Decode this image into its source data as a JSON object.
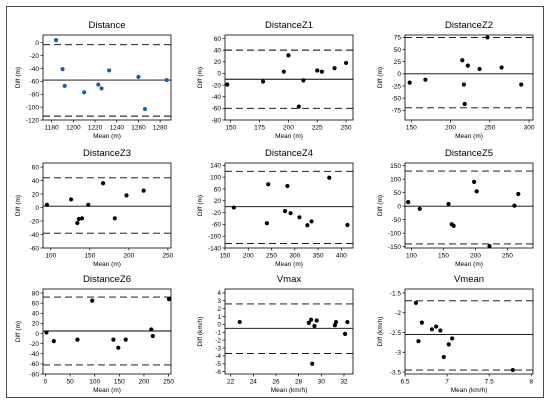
{
  "chart_data": [
    {
      "type": "scatter",
      "title": "Distance",
      "xlabel": "Mean (m)",
      "ylabel": "Diff (m)",
      "xlim": [
        1172,
        1290
      ],
      "ylim": [
        -120,
        12
      ],
      "xticks": [
        1180,
        1200,
        1220,
        1240,
        1260,
        1280
      ],
      "yticks": [
        0,
        -20,
        -40,
        -60,
        -80,
        -100,
        -120
      ],
      "marker_color": "#1f5f9a",
      "mean_line": -58,
      "limits": [
        -3,
        -114
      ],
      "points": [
        {
          "x": 1184,
          "y": 4
        },
        {
          "x": 1190,
          "y": -41
        },
        {
          "x": 1192,
          "y": -67
        },
        {
          "x": 1210,
          "y": -77
        },
        {
          "x": 1223,
          "y": -65
        },
        {
          "x": 1226,
          "y": -71
        },
        {
          "x": 1233,
          "y": -43
        },
        {
          "x": 1260,
          "y": -53
        },
        {
          "x": 1266,
          "y": -103
        },
        {
          "x": 1286,
          "y": -58
        }
      ]
    },
    {
      "type": "scatter",
      "title": "DistanceZ1",
      "xlabel": "Mean (m)",
      "ylabel": "Diff (m)",
      "xlim": [
        145,
        256
      ],
      "ylim": [
        -80,
        66
      ],
      "xticks": [
        150,
        175,
        200,
        225,
        250
      ],
      "yticks": [
        60,
        40,
        20,
        0,
        -20,
        -40,
        -60,
        -80
      ],
      "marker_color": "#000000",
      "mean_line": -10,
      "limits": [
        40,
        -60
      ],
      "points": [
        {
          "x": 147,
          "y": -19
        },
        {
          "x": 178,
          "y": -14
        },
        {
          "x": 196,
          "y": 3
        },
        {
          "x": 200,
          "y": 31
        },
        {
          "x": 209,
          "y": -57
        },
        {
          "x": 213,
          "y": -12
        },
        {
          "x": 225,
          "y": 5
        },
        {
          "x": 229,
          "y": 3
        },
        {
          "x": 240,
          "y": 9
        },
        {
          "x": 250,
          "y": 18
        }
      ]
    },
    {
      "type": "scatter",
      "title": "DistanceZ2",
      "xlabel": "Mean (m)",
      "ylabel": "Diff (m)",
      "xlim": [
        142,
        305
      ],
      "ylim": [
        -95,
        80
      ],
      "xticks": [
        150,
        200,
        250,
        300
      ],
      "yticks": [
        75,
        50,
        25,
        0,
        -25,
        -50,
        -75
      ],
      "marker_color": "#000000",
      "mean_line": 0,
      "limits": [
        75,
        -70
      ],
      "points": [
        {
          "x": 148,
          "y": -18
        },
        {
          "x": 168,
          "y": -12
        },
        {
          "x": 215,
          "y": 28
        },
        {
          "x": 217,
          "y": -22
        },
        {
          "x": 218,
          "y": -62
        },
        {
          "x": 222,
          "y": 17
        },
        {
          "x": 237,
          "y": 10
        },
        {
          "x": 247,
          "y": 75
        },
        {
          "x": 265,
          "y": 13
        },
        {
          "x": 290,
          "y": -22
        }
      ]
    },
    {
      "type": "scatter",
      "title": "DistanceZ3",
      "xlabel": "Mean (m)",
      "ylabel": "Diff (m)",
      "xlim": [
        90,
        254
      ],
      "ylim": [
        -60,
        66
      ],
      "xticks": [
        100,
        150,
        200,
        250
      ],
      "yticks": [
        60,
        40,
        20,
        0,
        -20,
        -40,
        -60
      ],
      "marker_color": "#000000",
      "mean_line": 2,
      "limits": [
        44,
        -38
      ],
      "points": [
        {
          "x": 95,
          "y": 4
        },
        {
          "x": 126,
          "y": 12
        },
        {
          "x": 134,
          "y": -23
        },
        {
          "x": 136,
          "y": -17
        },
        {
          "x": 140,
          "y": -16
        },
        {
          "x": 148,
          "y": 4
        },
        {
          "x": 167,
          "y": 36
        },
        {
          "x": 182,
          "y": -16
        },
        {
          "x": 197,
          "y": 18
        },
        {
          "x": 219,
          "y": 25
        }
      ]
    },
    {
      "type": "scatter",
      "title": "DistanceZ4",
      "xlabel": "Mean (m)",
      "ylabel": "Diff (m)",
      "xlim": [
        150,
        425
      ],
      "ylim": [
        -140,
        148
      ],
      "xticks": [
        150,
        200,
        250,
        300,
        350,
        400
      ],
      "yticks": [
        140,
        100,
        60,
        20,
        -20,
        -60,
        -100,
        -140
      ],
      "marker_color": "#000000",
      "mean_line": 0,
      "limits": [
        120,
        -125
      ],
      "points": [
        {
          "x": 169,
          "y": -3
        },
        {
          "x": 240,
          "y": -56
        },
        {
          "x": 243,
          "y": 76
        },
        {
          "x": 279,
          "y": -15
        },
        {
          "x": 284,
          "y": 70
        },
        {
          "x": 291,
          "y": -22
        },
        {
          "x": 310,
          "y": -36
        },
        {
          "x": 327,
          "y": -63
        },
        {
          "x": 336,
          "y": -50
        },
        {
          "x": 374,
          "y": 98
        },
        {
          "x": 413,
          "y": -62
        }
      ]
    },
    {
      "type": "scatter",
      "title": "DistanceZ5",
      "xlabel": "Mean (m)",
      "ylabel": "Diff (m)",
      "xlim": [
        90,
        290
      ],
      "ylim": [
        -155,
        160
      ],
      "xticks": [
        100,
        150,
        200,
        250
      ],
      "yticks": [
        150,
        100,
        50,
        0,
        -50,
        -100,
        -150
      ],
      "marker_color": "#000000",
      "mean_line": 0,
      "limits": [
        130,
        -140
      ],
      "points": [
        {
          "x": 95,
          "y": 15
        },
        {
          "x": 113,
          "y": -10
        },
        {
          "x": 158,
          "y": 8
        },
        {
          "x": 163,
          "y": -67
        },
        {
          "x": 166,
          "y": -73
        },
        {
          "x": 198,
          "y": 90
        },
        {
          "x": 202,
          "y": 55
        },
        {
          "x": 222,
          "y": -148
        },
        {
          "x": 261,
          "y": 2
        },
        {
          "x": 267,
          "y": 45
        }
      ]
    },
    {
      "type": "scatter",
      "title": "DistanceZ6",
      "xlabel": "Mean (m)",
      "ylabel": "Diff (m)",
      "xlim": [
        -5,
        255
      ],
      "ylim": [
        -80,
        88
      ],
      "xticks": [
        0,
        50,
        100,
        150,
        200,
        250
      ],
      "yticks": [
        80,
        60,
        40,
        20,
        0,
        -20,
        -40,
        -60,
        -80
      ],
      "marker_color": "#000000",
      "mean_line": 5,
      "limits": [
        72,
        -62
      ],
      "points": [
        {
          "x": 2,
          "y": 2
        },
        {
          "x": 17,
          "y": -15
        },
        {
          "x": 65,
          "y": -12
        },
        {
          "x": 95,
          "y": 65
        },
        {
          "x": 138,
          "y": -12
        },
        {
          "x": 148,
          "y": -28
        },
        {
          "x": 163,
          "y": -12
        },
        {
          "x": 215,
          "y": 8
        },
        {
          "x": 218,
          "y": -5
        },
        {
          "x": 251,
          "y": 68
        }
      ]
    },
    {
      "type": "scatter",
      "title": "Vmax",
      "xlabel": "Mean (km/h)",
      "ylabel": "Diff (km/h)",
      "xlim": [
        21.5,
        32.8
      ],
      "ylim": [
        -6.3,
        4.5
      ],
      "xticks": [
        22,
        24,
        26,
        28,
        30,
        32
      ],
      "yticks": [
        4,
        3,
        2,
        1,
        0,
        -1,
        -2,
        -3,
        -4,
        -5,
        -6
      ],
      "marker_color": "#000000",
      "mean_line": -0.5,
      "limits": [
        2.6,
        -3.7
      ],
      "points": [
        {
          "x": 22.8,
          "y": 0.3
        },
        {
          "x": 28.9,
          "y": 0.2
        },
        {
          "x": 29.1,
          "y": 0.6
        },
        {
          "x": 29.2,
          "y": -5.0
        },
        {
          "x": 29.4,
          "y": -0.2
        },
        {
          "x": 29.6,
          "y": 0.5
        },
        {
          "x": 31.2,
          "y": -0.1
        },
        {
          "x": 31.3,
          "y": 0.3
        },
        {
          "x": 32.1,
          "y": -1.2
        },
        {
          "x": 32.3,
          "y": 0.3
        }
      ]
    },
    {
      "type": "scatter",
      "title": "Vmean",
      "xlabel": "Mean (km/h)",
      "ylabel": "Diff (km/h)",
      "xlim": [
        6.5,
        8.02
      ],
      "ylim": [
        -3.55,
        -1.4
      ],
      "xticks": [
        6.5,
        7,
        7.5,
        8
      ],
      "yticks": [
        -1.5,
        -2,
        -2.5,
        -3,
        -3.5
      ],
      "marker_color": "#000000",
      "mean_line": -2.55,
      "limits": [
        -1.7,
        -3.45
      ],
      "points": [
        {
          "x": 6.63,
          "y": -1.75
        },
        {
          "x": 6.66,
          "y": -2.72
        },
        {
          "x": 6.7,
          "y": -2.25
        },
        {
          "x": 6.82,
          "y": -2.42
        },
        {
          "x": 6.87,
          "y": -2.35
        },
        {
          "x": 6.92,
          "y": -2.45
        },
        {
          "x": 6.96,
          "y": -3.12
        },
        {
          "x": 7.02,
          "y": -2.8
        },
        {
          "x": 7.06,
          "y": -2.65
        },
        {
          "x": 7.78,
          "y": -3.45
        }
      ]
    }
  ]
}
